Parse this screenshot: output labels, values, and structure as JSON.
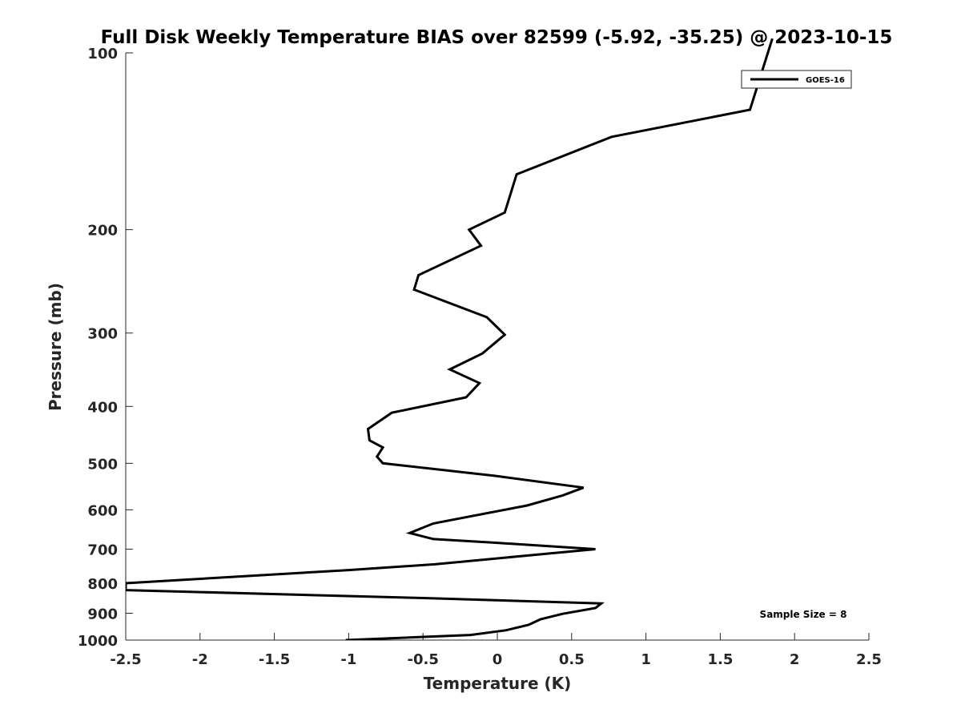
{
  "chart_data": {
    "type": "line",
    "title": "Full Disk Weekly Temperature BIAS over 82599 (-5.92, -35.25) @ 2023-10-15",
    "xlabel": "Temperature (K)",
    "ylabel": "Pressure (mb)",
    "xlim": [
      -2.5,
      2.5
    ],
    "ylim": [
      1000,
      100
    ],
    "yscale": "log",
    "y_reversed": true,
    "xticks": [
      -2.5,
      -2,
      -1.5,
      -1,
      -0.5,
      0,
      0.5,
      1,
      1.5,
      2,
      2.5
    ],
    "xtick_labels": [
      "-2.5",
      "-2",
      "-1.5",
      "-1",
      "-0.5",
      "0",
      "0.5",
      "1",
      "1.5",
      "2",
      "2.5"
    ],
    "yticks": [
      100,
      200,
      300,
      400,
      500,
      600,
      700,
      800,
      900,
      1000
    ],
    "ytick_labels": [
      "100",
      "200",
      "300",
      "400",
      "500",
      "600",
      "700",
      "800",
      "900",
      "1000"
    ],
    "grid": false,
    "legend_position": "top-right",
    "annotation": "Sample Size = 8",
    "series": [
      {
        "name": "GOES-16",
        "color": "#000000",
        "points": [
          {
            "x": 1.82,
            "p": 100
          },
          {
            "x": 1.7,
            "p": 125
          },
          {
            "x": 0.77,
            "p": 139
          },
          {
            "x": 0.13,
            "p": 161
          },
          {
            "x": 0.05,
            "p": 187
          },
          {
            "x": -0.19,
            "p": 200
          },
          {
            "x": -0.11,
            "p": 213
          },
          {
            "x": -0.53,
            "p": 239
          },
          {
            "x": -0.56,
            "p": 253
          },
          {
            "x": -0.07,
            "p": 282
          },
          {
            "x": 0.05,
            "p": 302
          },
          {
            "x": -0.1,
            "p": 325
          },
          {
            "x": -0.32,
            "p": 346
          },
          {
            "x": -0.12,
            "p": 365
          },
          {
            "x": -0.21,
            "p": 386
          },
          {
            "x": -0.71,
            "p": 410
          },
          {
            "x": -0.87,
            "p": 437
          },
          {
            "x": -0.86,
            "p": 457
          },
          {
            "x": -0.77,
            "p": 470
          },
          {
            "x": -0.81,
            "p": 487
          },
          {
            "x": -0.77,
            "p": 500
          },
          {
            "x": -0.02,
            "p": 525
          },
          {
            "x": 0.58,
            "p": 550
          },
          {
            "x": 0.44,
            "p": 567
          },
          {
            "x": 0.2,
            "p": 590
          },
          {
            "x": -0.43,
            "p": 633
          },
          {
            "x": -0.59,
            "p": 657
          },
          {
            "x": -0.43,
            "p": 673
          },
          {
            "x": 0.0,
            "p": 683
          },
          {
            "x": 0.66,
            "p": 700
          },
          {
            "x": 0.2,
            "p": 718
          },
          {
            "x": -0.42,
            "p": 743
          },
          {
            "x": -1.0,
            "p": 760
          },
          {
            "x": -2.5,
            "p": 800
          },
          {
            "x": -2.5,
            "p": 822
          },
          {
            "x": -0.5,
            "p": 848
          },
          {
            "x": 0.7,
            "p": 866
          },
          {
            "x": 0.66,
            "p": 882
          },
          {
            "x": 0.44,
            "p": 902
          },
          {
            "x": 0.29,
            "p": 922
          },
          {
            "x": 0.21,
            "p": 942
          },
          {
            "x": 0.06,
            "p": 962
          },
          {
            "x": -0.18,
            "p": 980
          },
          {
            "x": -1.02,
            "p": 1000
          }
        ]
      }
    ]
  }
}
